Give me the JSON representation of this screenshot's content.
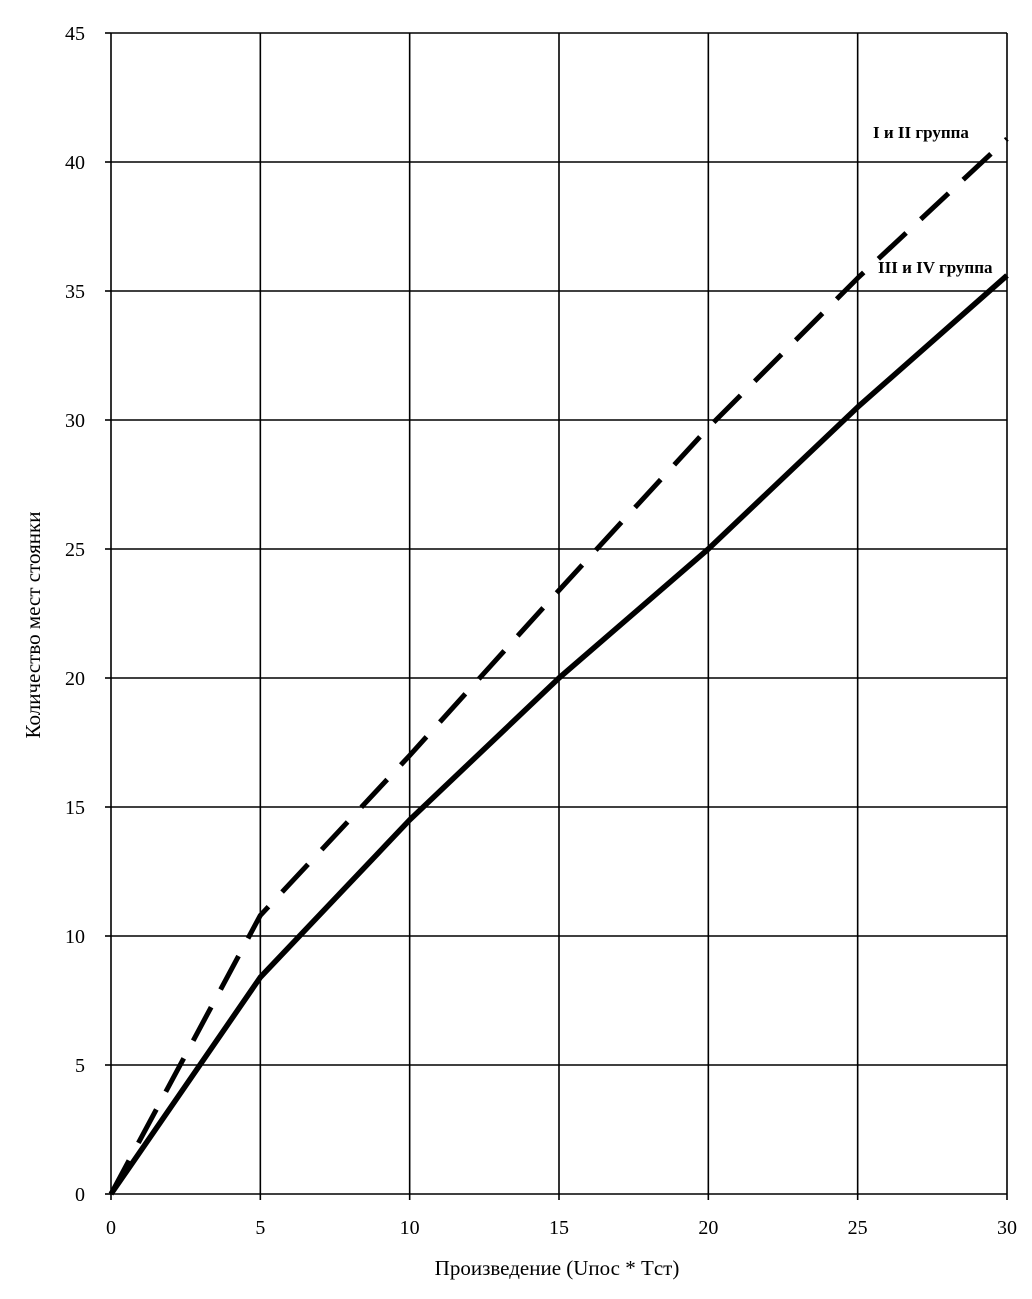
{
  "chart_data": {
    "type": "line",
    "title": "",
    "xlabel": "Произведение (Uпос * Tст)",
    "ylabel": "Количество мест стоянки",
    "xlim": [
      0,
      30
    ],
    "ylim": [
      0,
      45
    ],
    "x_ticks": [
      "0",
      "5",
      "10",
      "15",
      "20",
      "25",
      "30"
    ],
    "y_ticks": [
      "0",
      "5",
      "10",
      "15",
      "20",
      "25",
      "30",
      "35",
      "40",
      "45"
    ],
    "grid": true,
    "series": [
      {
        "name": "I и II группа",
        "style": "dashed",
        "x": [
          0,
          5,
          10,
          15,
          20,
          25,
          30
        ],
        "y": [
          0,
          10.8,
          17.0,
          23.4,
          29.7,
          35.5,
          40.9
        ]
      },
      {
        "name": "III и IV группа",
        "style": "solid",
        "x": [
          0,
          5,
          10,
          15,
          20,
          25,
          30
        ],
        "y": [
          0,
          8.4,
          14.5,
          20.0,
          25.0,
          30.5,
          35.6
        ]
      }
    ],
    "colors": {
      "line": "#000000",
      "grid": "#000000",
      "background": "#ffffff"
    }
  }
}
